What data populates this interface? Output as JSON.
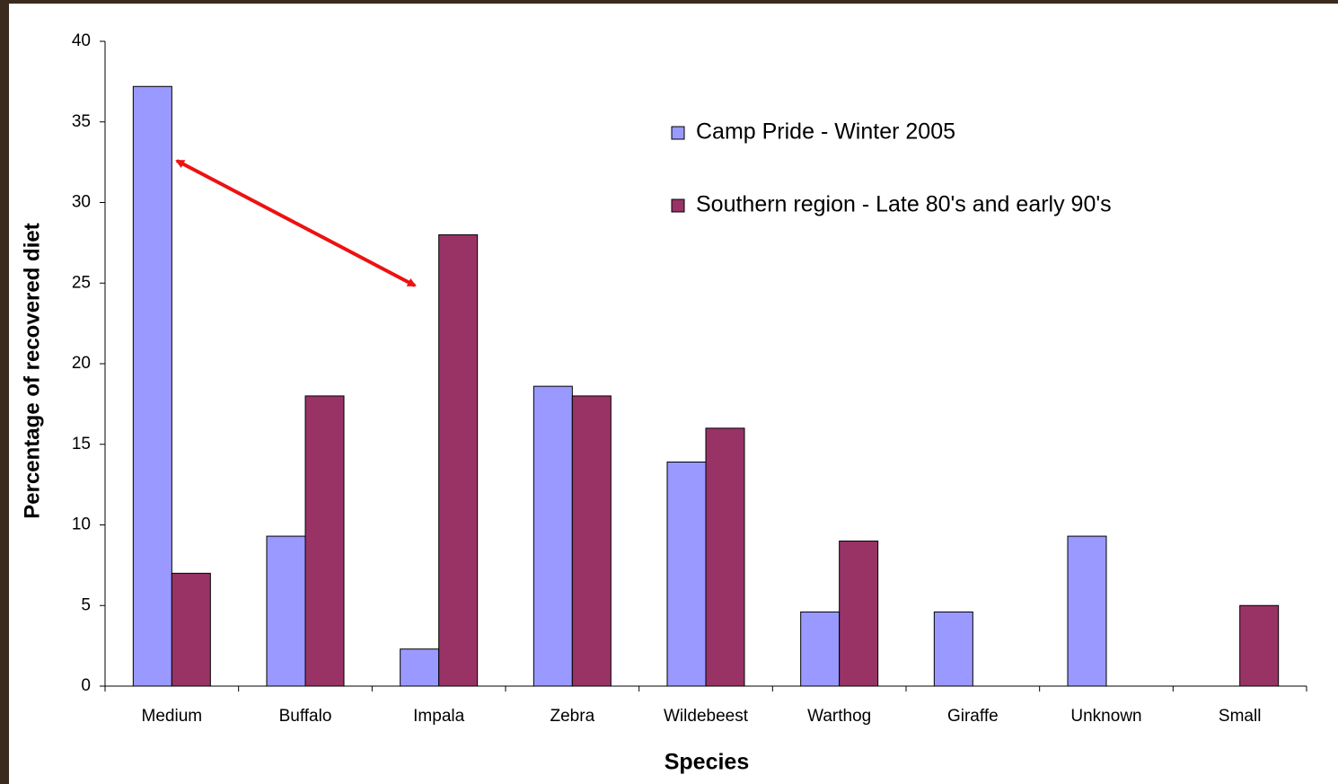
{
  "chart_data": {
    "type": "bar",
    "xlabel": "Species",
    "ylabel": "Percentage of recovered diet",
    "categories": [
      "Medium",
      "Buffalo",
      "Impala",
      "Zebra",
      "Wildebeest",
      "Warthog",
      "Giraffe",
      "Unknown",
      "Small"
    ],
    "series": [
      {
        "name": "Camp Pride - Winter 2005",
        "color": "#9999ff",
        "values": [
          37.2,
          9.3,
          2.3,
          18.6,
          13.9,
          4.6,
          4.6,
          9.3,
          0
        ]
      },
      {
        "name": "Southern region - Late 80's and early 90's",
        "color": "#993366",
        "values": [
          7,
          18,
          28,
          18,
          16,
          9,
          0,
          0,
          5
        ]
      }
    ],
    "ylim": [
      0,
      40
    ],
    "yticks": [
      0,
      5,
      10,
      15,
      20,
      25,
      30,
      35,
      40
    ],
    "grid": false
  }
}
